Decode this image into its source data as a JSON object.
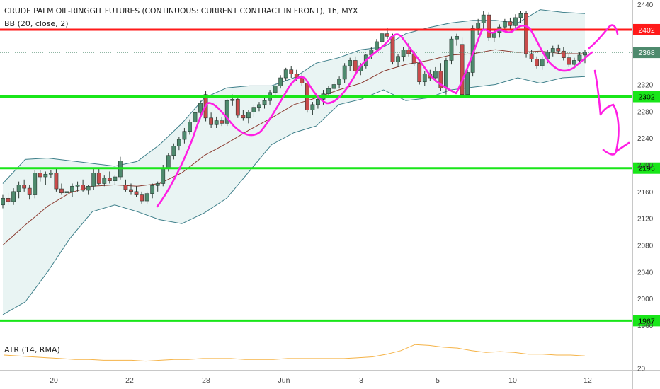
{
  "header": {
    "title": "CRUDE PALM OIL-RINGGIT FUTURES (CONTINUOUS: CURRENT CONTRACT IN FRONT), 1h, MYX",
    "indicator": "BB (20, close, 2)",
    "sub_indicator": "ATR (14, RMA)"
  },
  "colors": {
    "up": "#4e8a6d",
    "down": "#c94b4b",
    "bb_band": "#3e7f8a",
    "bb_fill": "#e9f4f3",
    "bb_basis": "#8b3a2f",
    "hline_red": "#ff1a1a",
    "hline_green": "#19e619",
    "drawing": "#ff1fe4",
    "atr": "#f5b347"
  },
  "chart_data": {
    "type": "candlestick",
    "title": "CRUDE PALM OIL-RINGGIT FUTURES (CONTINUOUS: CURRENT CONTRACT IN FRONT), 1h, MYX",
    "y_ticks": [
      2440,
      2400,
      2360,
      2320,
      2280,
      2240,
      2200,
      2160,
      2120,
      2080,
      2040,
      2000,
      1960
    ],
    "y_ticks_sub": [
      20
    ],
    "x_ticks": [
      "20",
      "22",
      "28",
      "Jun",
      "3",
      "5",
      "10",
      "12"
    ],
    "horizontal_levels": [
      {
        "value": 2402,
        "label": "2402",
        "color": "red"
      },
      {
        "value": 2302,
        "label": "2302",
        "color": "green"
      },
      {
        "value": 2195,
        "label": "2195",
        "color": "green"
      },
      {
        "value": 1967,
        "label": "1967",
        "color": "green"
      }
    ],
    "last_price": {
      "value": 2368,
      "label": "2368"
    },
    "candles": [
      [
        2140,
        2155,
        2135,
        2150
      ],
      [
        2150,
        2158,
        2140,
        2145
      ],
      [
        2145,
        2165,
        2140,
        2160
      ],
      [
        2160,
        2175,
        2150,
        2170
      ],
      [
        2170,
        2178,
        2160,
        2165
      ],
      [
        2165,
        2170,
        2148,
        2155
      ],
      [
        2155,
        2192,
        2150,
        2188
      ],
      [
        2188,
        2192,
        2175,
        2182
      ],
      [
        2182,
        2190,
        2170,
        2186
      ],
      [
        2186,
        2192,
        2180,
        2188
      ],
      [
        2188,
        2194,
        2160,
        2164
      ],
      [
        2164,
        2172,
        2155,
        2158
      ],
      [
        2158,
        2165,
        2148,
        2160
      ],
      [
        2160,
        2172,
        2152,
        2168
      ],
      [
        2168,
        2175,
        2160,
        2170
      ],
      [
        2170,
        2178,
        2160,
        2162
      ],
      [
        2162,
        2170,
        2155,
        2168
      ],
      [
        2168,
        2195,
        2162,
        2188
      ],
      [
        2188,
        2195,
        2170,
        2172
      ],
      [
        2172,
        2184,
        2168,
        2180
      ],
      [
        2180,
        2190,
        2172,
        2176
      ],
      [
        2176,
        2185,
        2170,
        2182
      ],
      [
        2182,
        2212,
        2178,
        2206
      ],
      [
        2170,
        2178,
        2160,
        2163
      ],
      [
        2163,
        2172,
        2155,
        2160
      ],
      [
        2160,
        2168,
        2152,
        2155
      ],
      [
        2155,
        2160,
        2142,
        2146
      ],
      [
        2146,
        2160,
        2142,
        2157
      ],
      [
        2157,
        2172,
        2150,
        2169
      ],
      [
        2169,
        2175,
        2160,
        2172
      ],
      [
        2172,
        2200,
        2168,
        2195
      ],
      [
        2195,
        2218,
        2190,
        2214
      ],
      [
        2214,
        2232,
        2208,
        2228
      ],
      [
        2228,
        2242,
        2222,
        2238
      ],
      [
        2238,
        2255,
        2232,
        2250
      ],
      [
        2250,
        2268,
        2245,
        2264
      ],
      [
        2264,
        2282,
        2258,
        2278
      ],
      [
        2278,
        2296,
        2272,
        2292
      ],
      [
        2305,
        2310,
        2265,
        2270
      ],
      [
        2270,
        2278,
        2255,
        2260
      ],
      [
        2260,
        2272,
        2255,
        2266
      ],
      [
        2266,
        2272,
        2258,
        2262
      ],
      [
        2262,
        2298,
        2258,
        2296
      ],
      [
        2296,
        2305,
        2288,
        2298
      ],
      [
        2298,
        2302,
        2270,
        2274
      ],
      [
        2274,
        2282,
        2266,
        2270
      ],
      [
        2270,
        2282,
        2262,
        2279
      ],
      [
        2279,
        2290,
        2272,
        2286
      ],
      [
        2286,
        2294,
        2280,
        2290
      ],
      [
        2290,
        2300,
        2284,
        2296
      ],
      [
        2296,
        2312,
        2290,
        2308
      ],
      [
        2308,
        2322,
        2304,
        2318
      ],
      [
        2318,
        2334,
        2314,
        2330
      ],
      [
        2330,
        2345,
        2325,
        2342
      ],
      [
        2342,
        2348,
        2330,
        2336
      ],
      [
        2336,
        2342,
        2325,
        2330
      ],
      [
        2330,
        2336,
        2318,
        2322
      ],
      [
        2322,
        2326,
        2278,
        2282
      ],
      [
        2282,
        2294,
        2274,
        2290
      ],
      [
        2290,
        2302,
        2284,
        2298
      ],
      [
        2298,
        2312,
        2290,
        2306
      ],
      [
        2306,
        2318,
        2300,
        2314
      ],
      [
        2314,
        2324,
        2308,
        2320
      ],
      [
        2320,
        2332,
        2314,
        2328
      ],
      [
        2328,
        2352,
        2322,
        2348
      ],
      [
        2348,
        2360,
        2340,
        2356
      ],
      [
        2356,
        2362,
        2335,
        2340
      ],
      [
        2340,
        2352,
        2334,
        2348
      ],
      [
        2348,
        2366,
        2344,
        2364
      ],
      [
        2364,
        2376,
        2358,
        2372
      ],
      [
        2372,
        2388,
        2368,
        2384
      ],
      [
        2384,
        2398,
        2378,
        2396
      ],
      [
        2396,
        2405,
        2388,
        2392
      ],
      [
        2392,
        2396,
        2350,
        2354
      ],
      [
        2354,
        2366,
        2346,
        2362
      ],
      [
        2362,
        2376,
        2355,
        2372
      ],
      [
        2372,
        2382,
        2362,
        2366
      ],
      [
        2366,
        2370,
        2348,
        2352
      ],
      [
        2352,
        2358,
        2320,
        2324
      ],
      [
        2324,
        2340,
        2318,
        2336
      ],
      [
        2336,
        2342,
        2325,
        2330
      ],
      [
        2330,
        2346,
        2324,
        2340
      ],
      [
        2340,
        2352,
        2310,
        2315
      ],
      [
        2315,
        2360,
        2305,
        2356
      ],
      [
        2356,
        2392,
        2350,
        2388
      ],
      [
        2388,
        2396,
        2378,
        2392
      ],
      [
        2380,
        2390,
        2300,
        2305
      ],
      [
        2305,
        2342,
        2300,
        2338
      ],
      [
        2338,
        2408,
        2332,
        2404
      ],
      [
        2404,
        2418,
        2394,
        2412
      ],
      [
        2412,
        2430,
        2402,
        2424
      ],
      [
        2424,
        2428,
        2385,
        2390
      ],
      [
        2390,
        2402,
        2384,
        2398
      ],
      [
        2398,
        2410,
        2390,
        2406
      ],
      [
        2406,
        2418,
        2400,
        2414
      ],
      [
        2414,
        2420,
        2402,
        2408
      ],
      [
        2408,
        2425,
        2404,
        2420
      ],
      [
        2420,
        2430,
        2412,
        2426
      ],
      [
        2426,
        2430,
        2360,
        2366
      ],
      [
        2366,
        2372,
        2354,
        2358
      ],
      [
        2358,
        2362,
        2344,
        2348
      ],
      [
        2348,
        2362,
        2342,
        2358
      ],
      [
        2358,
        2372,
        2352,
        2368
      ],
      [
        2368,
        2378,
        2362,
        2374
      ],
      [
        2374,
        2380,
        2366,
        2370
      ],
      [
        2370,
        2376,
        2356,
        2360
      ],
      [
        2360,
        2366,
        2346,
        2350
      ],
      [
        2350,
        2360,
        2344,
        2356
      ],
      [
        2356,
        2368,
        2350,
        2364
      ],
      [
        2364,
        2372,
        2352,
        2368
      ]
    ],
    "bollinger_upper_samples": [
      2172,
      2208,
      2210,
      2206,
      2202,
      2198,
      2205,
      2230,
      2262,
      2300,
      2315,
      2318,
      2318,
      2330,
      2352,
      2360,
      2372,
      2376,
      2396,
      2405,
      2412,
      2416,
      2416,
      2412,
      2432,
      2428,
      2426
    ],
    "bollinger_lower_samples": [
      1976,
      1995,
      2040,
      2090,
      2130,
      2140,
      2130,
      2118,
      2112,
      2128,
      2150,
      2190,
      2230,
      2248,
      2258,
      2290,
      2298,
      2312,
      2296,
      2300,
      2312,
      2316,
      2320,
      2330,
      2322,
      2330,
      2332
    ],
    "bollinger_basis_samples": [
      2080,
      2110,
      2138,
      2158,
      2168,
      2170,
      2168,
      2172,
      2188,
      2214,
      2232,
      2252,
      2270,
      2290,
      2300,
      2312,
      2322,
      2340,
      2350,
      2356,
      2364,
      2366,
      2372,
      2368,
      2370,
      2366,
      2366
    ],
    "atr_values": [
      35,
      34,
      33,
      32,
      31,
      30,
      30,
      29,
      29,
      29,
      28,
      29,
      30,
      30,
      31,
      31,
      31,
      30,
      30,
      30,
      31,
      31,
      31,
      31,
      31,
      32,
      33,
      36,
      40,
      47,
      46,
      44,
      43,
      40,
      38,
      39,
      38,
      36,
      36,
      35,
      35,
      34
    ],
    "atr_ylim": [
      18,
      52
    ]
  }
}
